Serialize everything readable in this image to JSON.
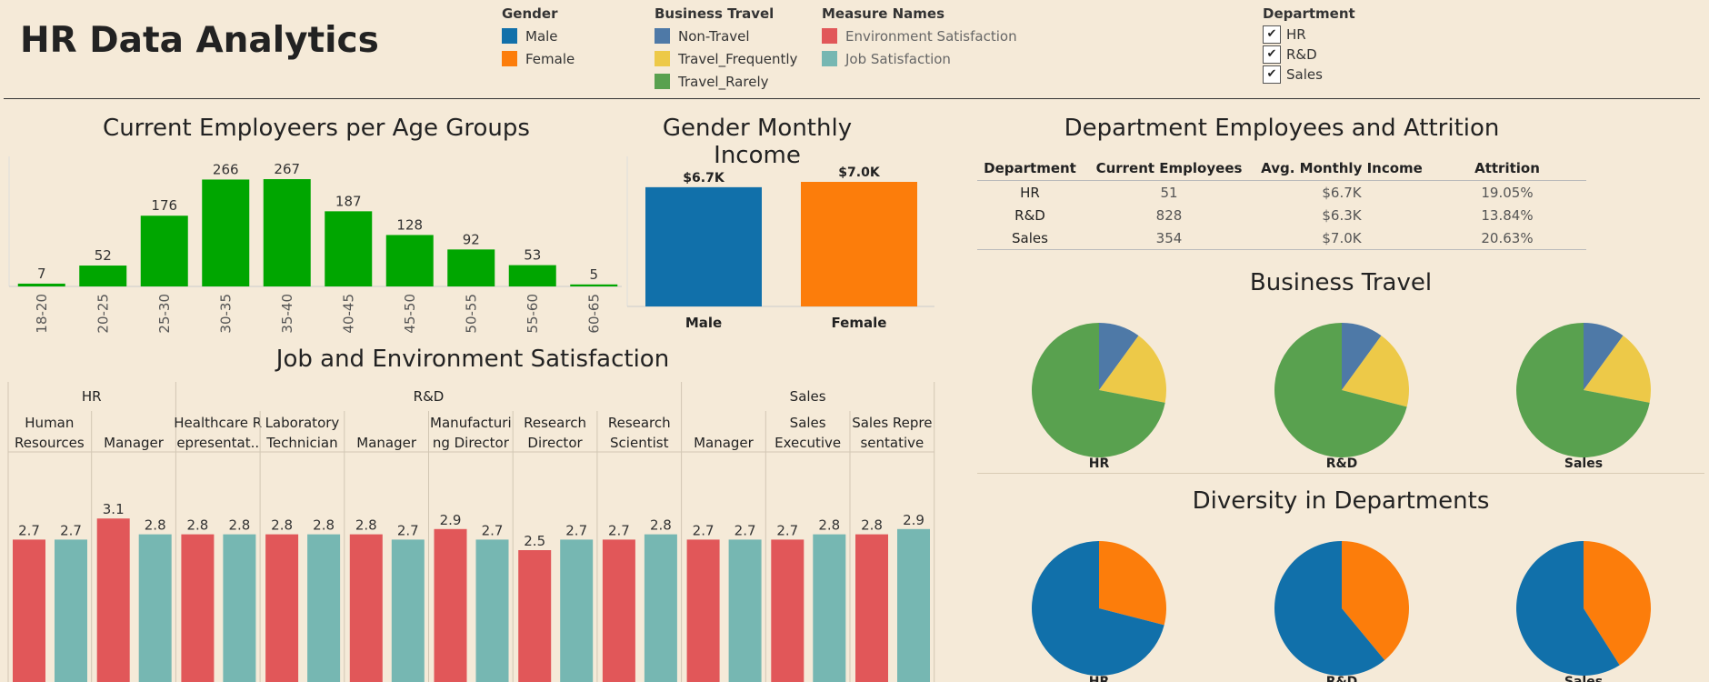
{
  "title": "HR Data Analytics",
  "legends": {
    "gender": {
      "title": "Gender",
      "items": [
        {
          "label": "Male",
          "color": "#1170aa"
        },
        {
          "label": "Female",
          "color": "#fc7d0b"
        }
      ]
    },
    "travel": {
      "title": "Business Travel",
      "items": [
        {
          "label": "Non-Travel",
          "color": "#4e79a7"
        },
        {
          "label": "Travel_Frequently",
          "color": "#edc948"
        },
        {
          "label": "Travel_Rarely",
          "color": "#59a14f"
        }
      ]
    },
    "measures": {
      "title": "Measure Names",
      "items": [
        {
          "label": "Environment Satisfaction",
          "color": "#e15759"
        },
        {
          "label": "Job Satisfaction",
          "color": "#76b7b2"
        }
      ]
    }
  },
  "department_filter": {
    "title": "Department",
    "options": [
      {
        "label": "HR",
        "checked": true
      },
      {
        "label": "R&D",
        "checked": true
      },
      {
        "label": "Sales",
        "checked": true
      }
    ]
  },
  "sections": {
    "age": "Current Employeers per Age Groups",
    "income": "Gender Monthly Income",
    "job": "Job and Environment Satisfaction",
    "dept": "Department Employees and Attrition",
    "travel": "Business Travel",
    "diversity": "Diversity in Departments"
  },
  "dept_table": {
    "headers": [
      "Department",
      "Current Employees",
      "Avg. Monthly Income",
      "Attrition"
    ],
    "rows": [
      [
        "HR",
        "51",
        "$6.7K",
        "19.05%"
      ],
      [
        "R&D",
        "828",
        "$6.3K",
        "13.84%"
      ],
      [
        "Sales",
        "354",
        "$7.0K",
        "20.63%"
      ]
    ]
  },
  "chart_data": [
    {
      "id": "age",
      "type": "bar",
      "title": "Current Employeers per Age Groups",
      "categories": [
        "18-20",
        "20-25",
        "25-30",
        "30-35",
        "35-40",
        "40-45",
        "45-50",
        "50-55",
        "55-60",
        "60-65"
      ],
      "values": [
        7,
        52,
        176,
        266,
        267,
        187,
        128,
        92,
        53,
        5
      ],
      "color": "#00a600",
      "ylim": [
        0,
        267
      ]
    },
    {
      "id": "income",
      "type": "bar",
      "title": "Gender Monthly Income",
      "categories": [
        "Male",
        "Female"
      ],
      "values": [
        6.7,
        7.0
      ],
      "labels": [
        "$6.7K",
        "$7.0K"
      ],
      "colors": [
        "#1170aa",
        "#fc7d0b"
      ]
    },
    {
      "id": "satisfaction",
      "type": "bar",
      "title": "Job and Environment Satisfaction",
      "groups": [
        {
          "department": "HR",
          "roles": [
            {
              "name": [
                "Human",
                "Resources"
              ],
              "env": 2.7,
              "job": 2.7
            },
            {
              "name": [
                "",
                "Manager"
              ],
              "env": 3.1,
              "job": 2.8
            }
          ]
        },
        {
          "department": "R&D",
          "roles": [
            {
              "name": [
                "Healthcare R",
                "epresentat.."
              ],
              "env": 2.8,
              "job": 2.8
            },
            {
              "name": [
                "Laboratory",
                "Technician"
              ],
              "env": 2.8,
              "job": 2.8
            },
            {
              "name": [
                "",
                "Manager"
              ],
              "env": 2.8,
              "job": 2.7
            },
            {
              "name": [
                "Manufacturi",
                "ng Director"
              ],
              "env": 2.9,
              "job": 2.7
            },
            {
              "name": [
                "Research",
                "Director"
              ],
              "env": 2.5,
              "job": 2.7
            },
            {
              "name": [
                "Research",
                "Scientist"
              ],
              "env": 2.7,
              "job": 2.8
            }
          ]
        },
        {
          "department": "Sales",
          "roles": [
            {
              "name": [
                "",
                "Manager"
              ],
              "env": 2.7,
              "job": 2.7
            },
            {
              "name": [
                "Sales",
                "Executive"
              ],
              "env": 2.7,
              "job": 2.8
            },
            {
              "name": [
                "Sales Repre",
                "sentative"
              ],
              "env": 2.8,
              "job": 2.9
            }
          ]
        }
      ],
      "series": [
        {
          "name": "Environment Satisfaction",
          "color": "#e15759"
        },
        {
          "name": "Job Satisfaction",
          "color": "#76b7b2"
        }
      ]
    },
    {
      "id": "travel",
      "type": "pie",
      "title": "Business Travel",
      "categories": [
        "Non-Travel",
        "Travel_Frequently",
        "Travel_Rarely"
      ],
      "colors": [
        "#4e79a7",
        "#edc948",
        "#59a14f"
      ],
      "pies": [
        {
          "label": "HR",
          "values": [
            10,
            18,
            72
          ]
        },
        {
          "label": "R&D",
          "values": [
            10,
            19,
            71
          ]
        },
        {
          "label": "Sales",
          "values": [
            10,
            18,
            72
          ]
        }
      ]
    },
    {
      "id": "diversity",
      "type": "pie",
      "title": "Diversity in Departments",
      "categories": [
        "Female",
        "Male"
      ],
      "colors": [
        "#fc7d0b",
        "#1170aa"
      ],
      "pies": [
        {
          "label": "HR",
          "values": [
            29,
            71
          ]
        },
        {
          "label": "R&D",
          "values": [
            39,
            61
          ]
        },
        {
          "label": "Sales",
          "values": [
            41,
            59
          ]
        }
      ]
    }
  ]
}
